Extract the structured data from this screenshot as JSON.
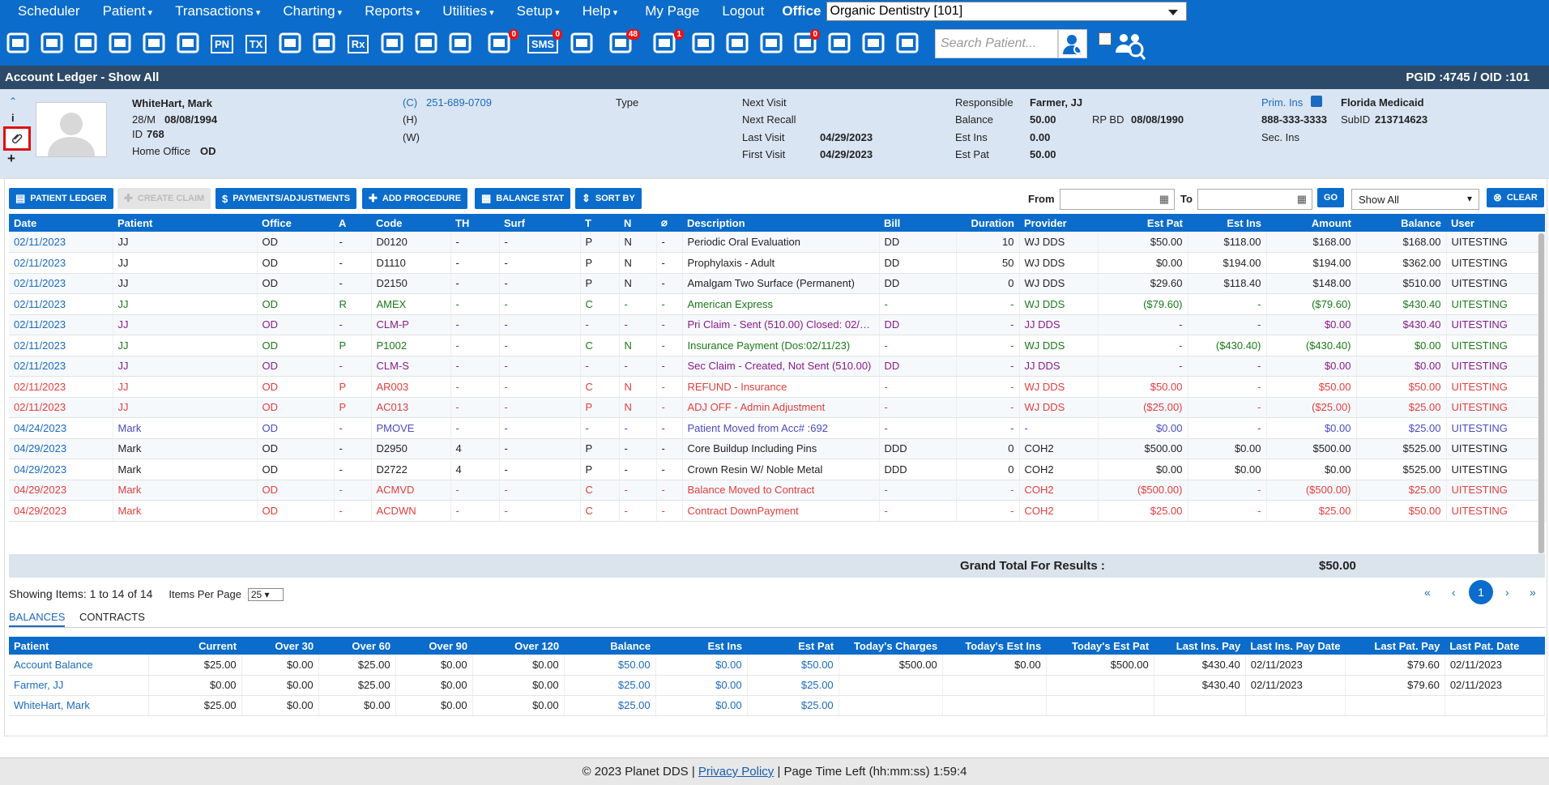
{
  "menu": {
    "items": [
      "Scheduler",
      "Patient",
      "Transactions",
      "Charting",
      "Reports",
      "Utilities",
      "Setup",
      "Help",
      "My Page",
      "Logout"
    ],
    "dropdown_flags": [
      false,
      true,
      true,
      true,
      true,
      true,
      true,
      true,
      false,
      false
    ],
    "office_label": "Office",
    "office_value": "Organic Dentistry [101]"
  },
  "toolbar": {
    "icons": [
      {
        "name": "calendar-icon",
        "badge": ""
      },
      {
        "name": "home-icon",
        "badge": ""
      },
      {
        "name": "dollar-exchange-icon",
        "badge": ""
      },
      {
        "name": "edit-pen-icon",
        "badge": ""
      },
      {
        "name": "tooth-icon",
        "badge": ""
      },
      {
        "name": "tooth-roots-icon",
        "badge": ""
      },
      {
        "name": "pn-icon",
        "badge": "",
        "text": "PN"
      },
      {
        "name": "tx-icon",
        "badge": "",
        "text": "TX"
      },
      {
        "name": "add-patient-icon",
        "badge": ""
      },
      {
        "name": "add-family-icon",
        "badge": ""
      },
      {
        "name": "rx-icon",
        "badge": "",
        "text": "Rx"
      },
      {
        "name": "notes-icon",
        "badge": ""
      },
      {
        "name": "document-icon",
        "badge": ""
      },
      {
        "name": "mail-icon",
        "badge": ""
      },
      {
        "name": "chat-icon",
        "badge": "0"
      },
      {
        "name": "sms-icon",
        "badge": "0",
        "text": "SMS"
      },
      {
        "name": "clock-icon",
        "badge": ""
      },
      {
        "name": "globe-users-icon",
        "badge": "48"
      },
      {
        "name": "refresh-user-icon",
        "badge": "1"
      },
      {
        "name": "tooth-outline-icon",
        "badge": ""
      },
      {
        "name": "tooth-question-icon",
        "badge": ""
      },
      {
        "name": "globe-settings-icon",
        "badge": ""
      },
      {
        "name": "checklist-icon",
        "badge": "0"
      },
      {
        "name": "people-icon",
        "badge": ""
      },
      {
        "name": "printer-icon",
        "badge": ""
      },
      {
        "name": "chevron-double-down-icon",
        "badge": ""
      }
    ],
    "search_placeholder": "Search Patient..."
  },
  "title": {
    "left": "Account Ledger - Show All",
    "right": "PGID :4745  /  OID :101"
  },
  "patient": {
    "name": "WhiteHart, Mark",
    "age_sex": "28/M",
    "dob": "08/08/1994",
    "id_label": "ID",
    "id": "768",
    "home_office_label": "Home Office",
    "home_office": "OD",
    "phone_c_label": "(C)",
    "phone_c": "251-689-0709",
    "phone_h_label": "(H)",
    "phone_w_label": "(W)",
    "type_label": "Type",
    "next_visit_label": "Next Visit",
    "next_recall_label": "Next Recall",
    "last_visit_label": "Last Visit",
    "last_visit": "04/29/2023",
    "first_visit_label": "First Visit",
    "first_visit": "04/29/2023",
    "responsible_label": "Responsible",
    "responsible": "Farmer, JJ",
    "balance_label": "Balance",
    "balance": "50.00",
    "rp_bd_label": "RP BD",
    "rp_bd": "08/08/1990",
    "est_ins_label": "Est Ins",
    "est_ins": "0.00",
    "est_pat_label": "Est Pat",
    "est_pat": "50.00",
    "prim_ins_label": "Prim. Ins",
    "prim_ins": "Florida Medicaid",
    "prim_phone": "888-333-3333",
    "subid_label": "SubID",
    "subid": "213714623",
    "sec_ins_label": "Sec. Ins"
  },
  "actions": {
    "patient_ledger": "PATIENT LEDGER",
    "create_claim": "CREATE CLAIM",
    "payments": "PAYMENTS/ADJUSTMENTS",
    "add_procedure": "ADD PROCEDURE",
    "balance_stat": "BALANCE STAT",
    "sort_by": "SORT BY",
    "from_label": "From",
    "to_label": "To",
    "go": "GO",
    "filter_value": "Show All",
    "clear": "CLEAR"
  },
  "ledger": {
    "columns": [
      "Date",
      "Patient",
      "Office",
      "A",
      "Code",
      "TH",
      "Surf",
      "T",
      "N",
      "",
      "Description",
      "Bill",
      "Duration",
      "Provider",
      "Est Pat",
      "Est Ins",
      "Amount",
      "Balance",
      "User"
    ],
    "rows": [
      {
        "color": "black",
        "cells": [
          "02/11/2023",
          "JJ",
          "OD",
          "-",
          "D0120",
          "-",
          "-",
          "P",
          "N",
          "-",
          "Periodic Oral Evaluation",
          "DD",
          "10",
          "WJ DDS",
          "$50.00",
          "$118.00",
          "$168.00",
          "$168.00",
          "UITESTING"
        ]
      },
      {
        "color": "black",
        "cells": [
          "02/11/2023",
          "JJ",
          "OD",
          "-",
          "D1110",
          "-",
          "-",
          "P",
          "N",
          "-",
          "Prophylaxis - Adult",
          "DD",
          "50",
          "WJ DDS",
          "$0.00",
          "$194.00",
          "$194.00",
          "$362.00",
          "UITESTING"
        ]
      },
      {
        "color": "black",
        "cells": [
          "02/11/2023",
          "JJ",
          "OD",
          "-",
          "D2150",
          "-",
          "-",
          "P",
          "N",
          "-",
          "Amalgam Two Surface (Permanent)",
          "DD",
          "0",
          "WJ DDS",
          "$29.60",
          "$118.40",
          "$148.00",
          "$510.00",
          "UITESTING"
        ]
      },
      {
        "color": "green",
        "cells": [
          "02/11/2023",
          "JJ",
          "OD",
          "R",
          "AMEX",
          "-",
          "-",
          "C",
          "-",
          "-",
          "American Express",
          "-",
          "-",
          "WJ DDS",
          "($79.60)",
          "-",
          "($79.60)",
          "$430.40",
          "UITESTING"
        ]
      },
      {
        "color": "purple",
        "cells": [
          "02/11/2023",
          "JJ",
          "OD",
          "-",
          "CLM-P",
          "-",
          "-",
          "-",
          "-",
          "-",
          "Pri Claim - Sent (510.00) Closed: 02/11/2023",
          "DD",
          "-",
          "JJ DDS",
          "-",
          "-",
          "$0.00",
          "$430.40",
          "UITESTING"
        ]
      },
      {
        "color": "green",
        "cells": [
          "02/11/2023",
          "JJ",
          "OD",
          "P",
          "P1002",
          "-",
          "-",
          "C",
          "N",
          "-",
          "Insurance Payment (Dos:02/11/23)",
          "-",
          "-",
          "WJ DDS",
          "-",
          "($430.40)",
          "($430.40)",
          "$0.00",
          "UITESTING"
        ]
      },
      {
        "color": "purple",
        "cells": [
          "02/11/2023",
          "JJ",
          "OD",
          "-",
          "CLM-S",
          "-",
          "-",
          "-",
          "-",
          "-",
          "Sec Claim - Created, Not Sent (510.00)",
          "DD",
          "-",
          "JJ DDS",
          "-",
          "-",
          "$0.00",
          "$0.00",
          "UITESTING"
        ]
      },
      {
        "color": "red",
        "cells": [
          "02/11/2023",
          "JJ",
          "OD",
          "P",
          "AR003",
          "-",
          "-",
          "C",
          "N",
          "-",
          "REFUND - Insurance",
          "-",
          "-",
          "WJ DDS",
          "$50.00",
          "-",
          "$50.00",
          "$50.00",
          "UITESTING"
        ]
      },
      {
        "color": "red",
        "cells": [
          "02/11/2023",
          "JJ",
          "OD",
          "P",
          "AC013",
          "-",
          "-",
          "P",
          "N",
          "-",
          "ADJ OFF - Admin Adjustment",
          "-",
          "-",
          "WJ DDS",
          "($25.00)",
          "-",
          "($25.00)",
          "$25.00",
          "UITESTING"
        ]
      },
      {
        "color": "blue",
        "cells": [
          "04/24/2023",
          "Mark",
          "OD",
          "-",
          "PMOVE",
          "-",
          "-",
          "-",
          "-",
          "-",
          "Patient Moved from Acc# :692",
          "-",
          "-",
          "-",
          "$0.00",
          "-",
          "$0.00",
          "$25.00",
          "UITESTING"
        ]
      },
      {
        "color": "black",
        "cells": [
          "04/29/2023",
          "Mark",
          "OD",
          "-",
          "D2950",
          "4",
          "-",
          "P",
          "-",
          "-",
          "Core Buildup Including Pins",
          "DDD",
          "0",
          "COH2",
          "$500.00",
          "$0.00",
          "$500.00",
          "$525.00",
          "UITESTING"
        ]
      },
      {
        "color": "black",
        "cells": [
          "04/29/2023",
          "Mark",
          "OD",
          "-",
          "D2722",
          "4",
          "-",
          "P",
          "-",
          "-",
          "Crown Resin W/ Noble Metal",
          "DDD",
          "0",
          "COH2",
          "$0.00",
          "$0.00",
          "$0.00",
          "$525.00",
          "UITESTING"
        ]
      },
      {
        "color": "red",
        "cells": [
          "04/29/2023",
          "Mark",
          "OD",
          "-",
          "ACMVD",
          "-",
          "-",
          "C",
          "-",
          "-",
          "Balance Moved to Contract",
          "-",
          "-",
          "COH2",
          "($500.00)",
          "-",
          "($500.00)",
          "$25.00",
          "UITESTING"
        ]
      },
      {
        "color": "red",
        "cells": [
          "04/29/2023",
          "Mark",
          "OD",
          "-",
          "ACDWN",
          "-",
          "-",
          "C",
          "-",
          "-",
          "Contract DownPayment",
          "-",
          "-",
          "COH2",
          "$25.00",
          "-",
          "$25.00",
          "$50.00",
          "UITESTING"
        ]
      }
    ],
    "grand_total_label": "Grand Total For Results :",
    "grand_total": "$50.00"
  },
  "paging": {
    "showing_label": "Showing Items:",
    "showing_value": "1 to 14 of 14",
    "per_page_label": "Items Per Page",
    "per_page": "25",
    "first": "«",
    "prev": "‹",
    "page": "1",
    "next": "›",
    "last": "»"
  },
  "tabs": {
    "balances": "BALANCES",
    "contracts": "CONTRACTS"
  },
  "balances": {
    "columns": [
      "Patient",
      "Current",
      "Over 30",
      "Over 60",
      "Over 90",
      "Over 120",
      "Balance",
      "Est Ins",
      "Est Pat",
      "Today's Charges",
      "Today's Est Ins",
      "Today's Est Pat",
      "Last Ins. Pay",
      "Last Ins. Pay Date",
      "Last Pat. Pay",
      "Last Pat. Date"
    ],
    "rows": [
      [
        "Account Balance",
        "$25.00",
        "$0.00",
        "$25.00",
        "$0.00",
        "$0.00",
        "$50.00",
        "$0.00",
        "$50.00",
        "$500.00",
        "$0.00",
        "$500.00",
        "$430.40",
        "02/11/2023",
        "$79.60",
        "02/11/2023"
      ],
      [
        "Farmer, JJ",
        "$0.00",
        "$0.00",
        "$25.00",
        "$0.00",
        "$0.00",
        "$25.00",
        "$0.00",
        "$25.00",
        "",
        "",
        "",
        "$430.40",
        "02/11/2023",
        "$79.60",
        "02/11/2023"
      ],
      [
        "WhiteHart, Mark",
        "$25.00",
        "$0.00",
        "$0.00",
        "$0.00",
        "$0.00",
        "$25.00",
        "$0.00",
        "$25.00",
        "",
        "",
        "",
        "",
        "",
        "",
        ""
      ]
    ]
  },
  "footer": {
    "copyright": "© 2023 Planet DDS |",
    "privacy": "Privacy Policy",
    "time_left": "|  Page Time Left (hh:mm:ss) 1:59:4"
  },
  "colors": {
    "primary": "#0b6ccb",
    "titlebar": "#2d4a68",
    "patient_bg": "#d9e5f2"
  }
}
